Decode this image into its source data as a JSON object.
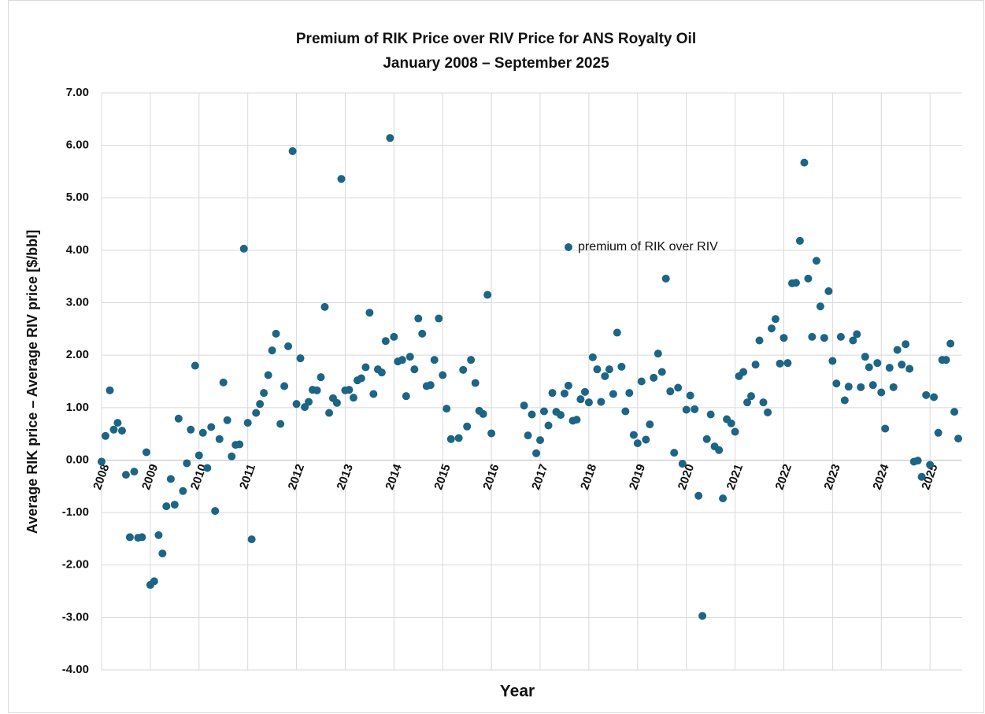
{
  "chart_data": {
    "type": "scatter",
    "title": "Premium of RIK Price over RIV Price for ANS Royalty Oil",
    "subtitle": "January 2008 – September 2025",
    "x_label": "Year",
    "y_label": "Average RIK price – Average RIV price [$/bbl]",
    "xlim": [
      2008,
      2025.66
    ],
    "xticks": [
      2008,
      2009,
      2010,
      2011,
      2012,
      2013,
      2014,
      2015,
      2016,
      2017,
      2018,
      2019,
      2020,
      2021,
      2022,
      2023,
      2024,
      2025
    ],
    "ylim": [
      -4,
      7
    ],
    "yticks": [
      {
        "value": -4,
        "label": "-4.00"
      },
      {
        "value": -3,
        "label": "-3.00"
      },
      {
        "value": -2,
        "label": "-2.00"
      },
      {
        "value": -1,
        "label": "-1.00"
      },
      {
        "value": 0,
        "label": "0.00"
      },
      {
        "value": 1,
        "label": "1.00"
      },
      {
        "value": 2,
        "label": "2.00"
      },
      {
        "value": 3,
        "label": "3.00"
      },
      {
        "value": 4,
        "label": "4.00"
      },
      {
        "value": 5,
        "label": "5.00"
      },
      {
        "value": 6,
        "label": "6.00"
      },
      {
        "value": 7,
        "label": "7.00"
      }
    ],
    "grid": true,
    "series": [
      {
        "name": "premium of RIK over RIV",
        "color": "#1c6585",
        "x": [
          2008.0,
          2008.08,
          2008.17,
          2008.25,
          2008.33,
          2008.42,
          2008.5,
          2008.58,
          2008.67,
          2008.75,
          2008.83,
          2008.92,
          2009.0,
          2009.08,
          2009.17,
          2009.25,
          2009.33,
          2009.42,
          2009.5,
          2009.58,
          2009.67,
          2009.75,
          2009.83,
          2009.92,
          2010.0,
          2010.08,
          2010.17,
          2010.25,
          2010.33,
          2010.42,
          2010.5,
          2010.58,
          2010.67,
          2010.75,
          2010.83,
          2010.92,
          2011.0,
          2011.08,
          2011.17,
          2011.25,
          2011.33,
          2011.42,
          2011.5,
          2011.58,
          2011.67,
          2011.75,
          2011.83,
          2011.92,
          2012.0,
          2012.08,
          2012.17,
          2012.25,
          2012.33,
          2012.42,
          2012.5,
          2012.58,
          2012.67,
          2012.75,
          2012.83,
          2012.92,
          2013.0,
          2013.08,
          2013.17,
          2013.25,
          2013.33,
          2013.42,
          2013.5,
          2013.58,
          2013.67,
          2013.75,
          2013.83,
          2013.92,
          2014.0,
          2014.08,
          2014.17,
          2014.25,
          2014.33,
          2014.42,
          2014.5,
          2014.58,
          2014.67,
          2014.75,
          2014.83,
          2014.92,
          2015.0,
          2015.08,
          2015.17,
          2015.33,
          2015.42,
          2015.5,
          2015.58,
          2015.67,
          2015.75,
          2015.83,
          2015.92,
          2016.0,
          2016.67,
          2016.75,
          2016.83,
          2016.92,
          2017.0,
          2017.08,
          2017.17,
          2017.25,
          2017.33,
          2017.42,
          2017.5,
          2017.58,
          2017.67,
          2017.75,
          2017.83,
          2017.92,
          2018.0,
          2018.08,
          2018.17,
          2018.25,
          2018.33,
          2018.42,
          2018.5,
          2018.58,
          2018.67,
          2018.75,
          2018.83,
          2018.92,
          2019.0,
          2019.08,
          2019.17,
          2019.25,
          2019.33,
          2019.42,
          2019.5,
          2019.58,
          2019.67,
          2019.75,
          2019.83,
          2019.92,
          2020.0,
          2020.08,
          2020.17,
          2020.25,
          2020.33,
          2020.42,
          2020.5,
          2020.58,
          2020.67,
          2020.75,
          2020.83,
          2020.92,
          2021.0,
          2021.08,
          2021.17,
          2021.25,
          2021.33,
          2021.42,
          2021.5,
          2021.58,
          2021.67,
          2021.75,
          2021.83,
          2021.92,
          2022.0,
          2022.08,
          2022.17,
          2022.25,
          2022.33,
          2022.42,
          2022.5,
          2022.58,
          2022.67,
          2022.75,
          2022.83,
          2022.92,
          2023.0,
          2023.08,
          2023.17,
          2023.25,
          2023.33,
          2023.42,
          2023.5,
          2023.58,
          2023.67,
          2023.75,
          2023.83,
          2023.92,
          2024.0,
          2024.08,
          2024.17,
          2024.25,
          2024.33,
          2024.42,
          2024.5,
          2024.58,
          2024.67,
          2024.75,
          2024.83,
          2024.92,
          2025.0,
          2025.08,
          2025.17,
          2025.25,
          2025.33,
          2025.42,
          2025.5,
          2025.58
        ],
        "values": [
          -0.03,
          0.46,
          1.33,
          0.58,
          0.71,
          0.56,
          -0.28,
          -1.47,
          -0.22,
          -1.48,
          -1.47,
          0.15,
          -2.38,
          -2.31,
          -1.43,
          -1.78,
          -0.88,
          -0.36,
          -0.85,
          0.79,
          -0.59,
          -0.06,
          0.58,
          1.8,
          0.09,
          0.52,
          -0.15,
          0.63,
          -0.97,
          0.4,
          1.48,
          0.76,
          0.07,
          0.29,
          0.3,
          4.03,
          0.71,
          -1.51,
          0.9,
          1.07,
          1.28,
          1.62,
          2.09,
          2.41,
          0.69,
          1.41,
          2.17,
          5.89,
          1.07,
          1.94,
          1.01,
          1.11,
          1.34,
          1.33,
          1.58,
          2.92,
          0.9,
          1.18,
          1.09,
          5.36,
          1.33,
          1.34,
          1.19,
          1.52,
          1.56,
          1.77,
          2.81,
          1.26,
          1.73,
          1.67,
          2.27,
          6.14,
          2.35,
          1.88,
          1.91,
          1.22,
          1.97,
          1.73,
          2.7,
          2.41,
          1.41,
          1.43,
          1.91,
          2.7,
          1.62,
          0.98,
          0.4,
          0.42,
          1.72,
          0.64,
          1.91,
          1.47,
          0.94,
          0.88,
          3.15,
          0.51,
          1.04,
          0.47,
          0.87,
          0.13,
          0.38,
          0.93,
          0.66,
          1.28,
          0.92,
          0.86,
          1.27,
          1.42,
          0.75,
          0.77,
          1.16,
          1.3,
          1.1,
          1.96,
          1.73,
          1.11,
          1.6,
          1.73,
          1.26,
          2.43,
          1.78,
          0.93,
          1.28,
          0.48,
          0.32,
          1.5,
          0.39,
          0.68,
          1.57,
          2.03,
          1.68,
          3.46,
          1.31,
          0.14,
          1.38,
          -0.07,
          0.96,
          1.23,
          0.97,
          -0.68,
          -2.97,
          0.4,
          0.87,
          0.26,
          0.19,
          -0.73,
          0.78,
          0.7,
          0.54,
          1.6,
          1.68,
          1.1,
          1.22,
          1.82,
          2.28,
          1.1,
          0.91,
          2.51,
          2.69,
          1.84,
          2.33,
          1.85,
          3.37,
          3.38,
          4.18,
          5.67,
          3.46,
          2.35,
          3.8,
          2.93,
          2.33,
          3.22,
          1.89,
          1.46,
          2.35,
          1.14,
          1.4,
          2.28,
          2.4,
          1.39,
          1.97,
          1.77,
          1.43,
          1.85,
          1.29,
          0.6,
          1.76,
          1.39,
          2.1,
          1.82,
          2.21,
          1.74,
          -0.03,
          -0.01,
          -0.32,
          1.24,
          -0.09,
          1.2,
          0.52,
          1.91,
          1.91,
          2.22,
          0.92,
          0.41
        ]
      }
    ]
  }
}
